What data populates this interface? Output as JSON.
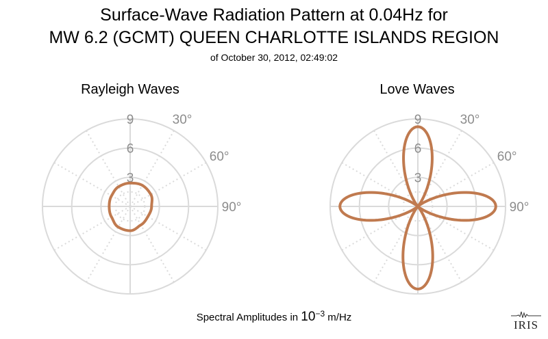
{
  "header": {
    "title_line1": "Surface-Wave Radiation Pattern at 0.04Hz for",
    "title_line2": "MW 6.2 (GCMT) QUEEN CHARLOTTE ISLANDS REGION",
    "subtitle": "of October 30, 2012, 02:49:02"
  },
  "footer": {
    "label_prefix": "Spectral Amplitudes in",
    "label_base": "10",
    "label_exponent": "−3",
    "label_unit": "m/Hz"
  },
  "logo": {
    "text": "IRIS"
  },
  "colors": {
    "curve": "#c07a4f",
    "grid": "#dadada",
    "label": "#8c8c8c"
  },
  "chart_data": [
    {
      "type": "polar-line",
      "title": "Rayleigh Waves",
      "r_ticks": [
        "3",
        "6",
        "9"
      ],
      "r_max": 9,
      "angle_labels": [
        "30°",
        "60°",
        "90°"
      ],
      "angle_label_values": [
        30,
        60,
        90
      ],
      "theta_deg": [
        0,
        30,
        60,
        90,
        120,
        150,
        180,
        210,
        240,
        270,
        300,
        330
      ],
      "r": [
        2.4,
        2.5,
        2.45,
        2.2,
        2.1,
        2.2,
        2.5,
        2.45,
        2.2,
        2.15,
        2.2,
        2.35
      ]
    },
    {
      "type": "polar-line",
      "title": "Love Waves",
      "r_ticks": [
        "3",
        "6",
        "9"
      ],
      "r_max": 9,
      "angle_labels": [
        "30°",
        "60°",
        "90°"
      ],
      "angle_label_values": [
        30,
        60,
        90
      ],
      "lobe_peak_bearings_deg": [
        0,
        90,
        180,
        270
      ],
      "lobe_peak_amplitudes": [
        8.2,
        8.0,
        8.5,
        8.0
      ],
      "lobe_width_exponent": 2.6
    }
  ]
}
